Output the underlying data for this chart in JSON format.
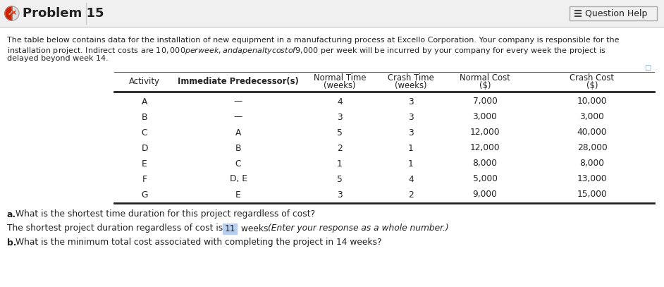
{
  "title": "Problem 15",
  "question_help_text": "Question Help",
  "desc1": "The table below contains data for the installation of new equipment in a manufacturing process at Excello Corporation. Your company is responsible for the",
  "desc2": "installation project. Indirect costs are $10,000 per week, and a penalty cost of $9,000 per week will be incurred by your company for every week the project is",
  "desc3": "delayed beyond week 14.",
  "col_headers": [
    [
      "Activity",
      ""
    ],
    [
      "Immediate Predecessor(s)",
      ""
    ],
    [
      "Normal Time",
      "(weeks)"
    ],
    [
      "Crash Time",
      "(weeks)"
    ],
    [
      "Normal Cost",
      "($)"
    ],
    [
      "Crash Cost",
      "($)"
    ]
  ],
  "rows": [
    [
      "A",
      "—",
      "4",
      "3",
      "7,000",
      "10,000"
    ],
    [
      "B",
      "—",
      "3",
      "3",
      "3,000",
      "3,000"
    ],
    [
      "C",
      "A",
      "5",
      "3",
      "12,000",
      "40,000"
    ],
    [
      "D",
      "B",
      "2",
      "1",
      "12,000",
      "28,000"
    ],
    [
      "E",
      "C",
      "1",
      "1",
      "8,000",
      "8,000"
    ],
    [
      "F",
      "D, E",
      "5",
      "4",
      "5,000",
      "13,000"
    ],
    [
      "G",
      "E",
      "3",
      "2",
      "9,000",
      "15,000"
    ]
  ],
  "question_a": "a. What is the shortest time duration for this project regardless of cost?",
  "ans_prefix": "The shortest project duration regardless of cost is ",
  "ans_value": "11",
  "ans_suffix": " weeks. ",
  "ans_italic": "(Enter your response as a whole number.)",
  "question_b": "b. What is the minimum total cost associated with completing the project in 14 weeks?",
  "bg_white": "#ffffff",
  "bg_header": "#f0f0f0",
  "border_color": "#cccccc",
  "text_dark": "#222222",
  "text_blue": "#0057a8",
  "highlight_box": "#b8d0ee",
  "icon_red": "#cc2200",
  "icon_green": "#44aa44",
  "table_line_color": "#555555",
  "table_thick_color": "#222222"
}
